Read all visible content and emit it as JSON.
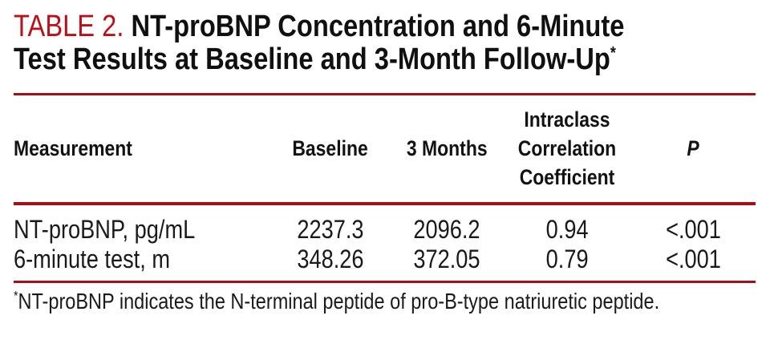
{
  "title": {
    "label": "TABLE 2.",
    "line1": "NT-proBNP Concentration and 6-Minute",
    "line2": "Test Results at Baseline and 3-Month Follow-Up",
    "footnote_marker": "*"
  },
  "table": {
    "columns": [
      "Measurement",
      "Baseline",
      "3 Months",
      "Intraclass Correlation Coefficient",
      "P"
    ],
    "rows": [
      {
        "measurement": "NT-proBNP, pg/mL",
        "baseline": "2237.3",
        "three_months": "2096.2",
        "icc": "0.94",
        "p": "<.001"
      },
      {
        "measurement": "6-minute test, m",
        "baseline": "348.26",
        "three_months": "372.05",
        "icc": "0.79",
        "p": "<.001"
      }
    ]
  },
  "footnote": {
    "marker": "*",
    "text": "NT-proBNP indicates the N-terminal peptide of pro-B-type natriuretic peptide."
  },
  "colors": {
    "accent_red_text": "#b9111a",
    "rule_red": "#a60d15",
    "text_black": "#161616"
  }
}
